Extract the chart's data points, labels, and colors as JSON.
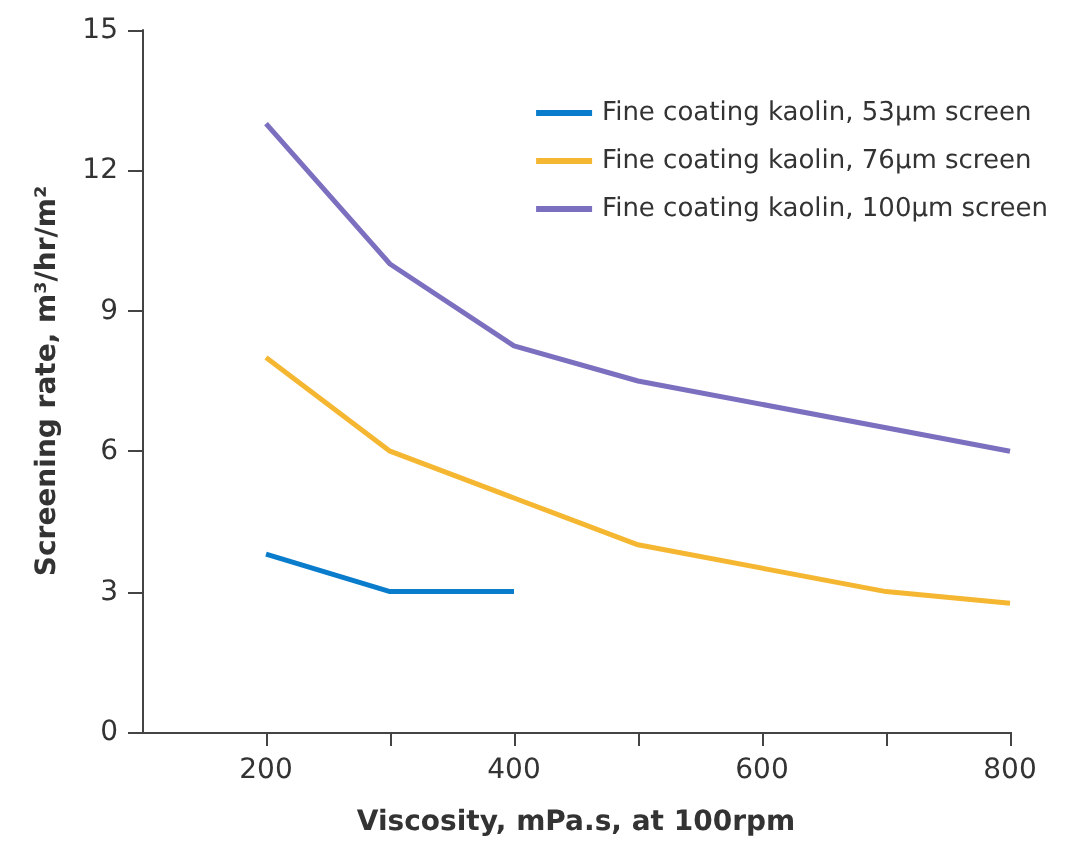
{
  "chart_data": {
    "type": "line",
    "xlabel": "Viscosity, mPa.s, at 100rpm",
    "ylabel": "Screening rate, m³/hr/m²",
    "series": [
      {
        "name": "Fine coating kaolin, 53µm screen",
        "color": "#0a7ccc",
        "x": [
          200,
          300,
          400
        ],
        "values": [
          3.8,
          3,
          3
        ]
      },
      {
        "name": "Fine coating kaolin, 76µm screen",
        "color": "#f5b731",
        "x": [
          200,
          300,
          400,
          500,
          700,
          800
        ],
        "values": [
          8,
          6,
          5,
          4,
          3,
          2.75
        ]
      },
      {
        "name": "Fine coating kaolin, 100µm screen",
        "color": "#7b6fbf",
        "x": [
          200,
          300,
          400,
          500,
          700,
          800
        ],
        "values": [
          13,
          10,
          8.25,
          7.5,
          6.5,
          6
        ]
      }
    ],
    "xlim": [
      100,
      800
    ],
    "xticks": [
      200,
      {
        "value": 300,
        "label": null
      },
      400,
      {
        "value": 500,
        "label": null
      },
      600,
      {
        "value": 700,
        "label": null
      },
      800
    ],
    "ylim": [
      0,
      15
    ],
    "yticks": [
      0,
      3,
      6,
      9,
      12,
      15
    ],
    "grid": false,
    "legend": "top right",
    "marker": "none",
    "line_style": "solid"
  }
}
